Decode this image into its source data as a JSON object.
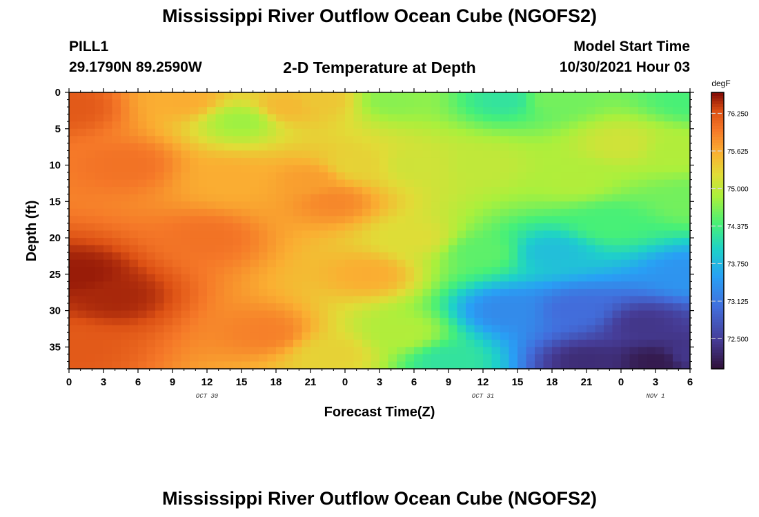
{
  "page": {
    "title": "Mississippi River Outflow Ocean Cube (NGOFS2)",
    "title_bottom": "Mississippi River Outflow Ocean Cube (NGOFS2)",
    "station_id": "PILL1",
    "station_coords": "29.1790N  89.2590W",
    "plot_subtitle": "2-D Temperature at Depth",
    "model_start_label": "Model Start Time",
    "model_start_value": "10/30/2021 Hour 03"
  },
  "chart_data": {
    "type": "heatmap",
    "title": "2-D Temperature at Depth",
    "xlabel": "Forecast Time(Z)",
    "ylabel": "Depth (ft)",
    "x_hours_from_oct30_00z": [
      0,
      54
    ],
    "x_tick_labels": [
      "0",
      "3",
      "6",
      "9",
      "12",
      "15",
      "18",
      "21",
      "0",
      "3",
      "6",
      "9",
      "12",
      "15",
      "18",
      "21",
      "0",
      "3",
      "6"
    ],
    "x_date_labels": [
      {
        "text": "OCT 30",
        "hour": 12
      },
      {
        "text": "OCT 31",
        "hour": 36
      },
      {
        "text": "NOV 1",
        "hour": 51
      }
    ],
    "y_range_ft": [
      0,
      38
    ],
    "y_tick_values": [
      0,
      5,
      10,
      15,
      20,
      25,
      30,
      35
    ],
    "colorbar": {
      "unit": "degF",
      "range": [
        72.0,
        76.6
      ],
      "tick_values": [
        76.25,
        75.625,
        75.0,
        74.375,
        73.75,
        73.125,
        72.5
      ],
      "tick_labels": [
        "76.250",
        "75.625",
        "75.000",
        "74.375",
        "73.750",
        "73.125",
        "72.500"
      ]
    },
    "cell_grid": {
      "nx": 72,
      "ny": 38
    },
    "field_control_points_degF": [
      {
        "hour": 0,
        "depth": 2,
        "value": 76.2
      },
      {
        "hour": 1,
        "depth": 25,
        "value": 76.5
      },
      {
        "hour": 4,
        "depth": 28,
        "value": 76.45
      },
      {
        "hour": 0,
        "depth": 35,
        "value": 76.2
      },
      {
        "hour": 5,
        "depth": 10,
        "value": 76.0
      },
      {
        "hour": 10,
        "depth": 1,
        "value": 75.6
      },
      {
        "hour": 12,
        "depth": 20,
        "value": 76.0
      },
      {
        "hour": 15,
        "depth": 4,
        "value": 74.8
      },
      {
        "hour": 14,
        "depth": 12,
        "value": 75.6
      },
      {
        "hour": 17,
        "depth": 33,
        "value": 75.9
      },
      {
        "hour": 21,
        "depth": 12,
        "value": 75.7
      },
      {
        "hour": 23,
        "depth": 15,
        "value": 75.85
      },
      {
        "hour": 19,
        "depth": 2,
        "value": 75.5
      },
      {
        "hour": 22,
        "depth": 1,
        "value": 75.4
      },
      {
        "hour": 25,
        "depth": 10,
        "value": 75.3
      },
      {
        "hour": 26,
        "depth": 25,
        "value": 75.6
      },
      {
        "hour": 23,
        "depth": 36,
        "value": 75.3
      },
      {
        "hour": 28,
        "depth": 1,
        "value": 74.7
      },
      {
        "hour": 30,
        "depth": 10,
        "value": 75.1
      },
      {
        "hour": 30,
        "depth": 20,
        "value": 75.2
      },
      {
        "hour": 29,
        "depth": 33,
        "value": 74.9
      },
      {
        "hour": 33,
        "depth": 37,
        "value": 74.2
      },
      {
        "hour": 38,
        "depth": 1,
        "value": 74.2
      },
      {
        "hour": 36,
        "depth": 10,
        "value": 75.0
      },
      {
        "hour": 36,
        "depth": 22,
        "value": 74.5
      },
      {
        "hour": 38,
        "depth": 30,
        "value": 73.3
      },
      {
        "hour": 42,
        "depth": 1,
        "value": 74.6
      },
      {
        "hour": 44,
        "depth": 12,
        "value": 74.9
      },
      {
        "hour": 42,
        "depth": 22,
        "value": 73.8
      },
      {
        "hour": 44,
        "depth": 30,
        "value": 73.0
      },
      {
        "hour": 45,
        "depth": 37,
        "value": 72.3
      },
      {
        "hour": 48,
        "depth": 7,
        "value": 75.1
      },
      {
        "hour": 47,
        "depth": 18,
        "value": 74.4
      },
      {
        "hour": 50,
        "depth": 32,
        "value": 72.4
      },
      {
        "hour": 51,
        "depth": 37,
        "value": 72.1
      },
      {
        "hour": 54,
        "depth": 1,
        "value": 74.4
      },
      {
        "hour": 53,
        "depth": 8,
        "value": 74.9
      },
      {
        "hour": 54,
        "depth": 15,
        "value": 74.6
      },
      {
        "hour": 54,
        "depth": 25,
        "value": 73.4
      },
      {
        "hour": 54,
        "depth": 36,
        "value": 72.4
      }
    ]
  }
}
